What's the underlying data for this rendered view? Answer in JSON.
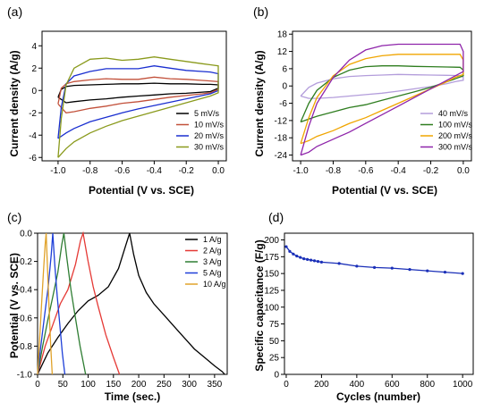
{
  "chart_data": [
    {
      "panel": "(a)",
      "type": "line",
      "xlabel": "Potential (V vs. SCE)",
      "ylabel": "Current density (A/g)",
      "xlim": [
        -1.1,
        0.05
      ],
      "ylim": [
        -6.3,
        5.3
      ],
      "xticks": [
        -1.0,
        -0.8,
        -0.6,
        -0.4,
        -0.2,
        0.0
      ],
      "yticks": [
        -6,
        -4,
        -2,
        0,
        2,
        4
      ],
      "xtick_labels": [
        "-1.0",
        "-0.8",
        "-0.6",
        "-0.4",
        "-0.2",
        "0.0"
      ],
      "ytick_labels": [
        "-6",
        "-4",
        "-2",
        "0",
        "2",
        "4"
      ],
      "legend_position": "bottom-right",
      "series": [
        {
          "name": "5 mV/s",
          "color": "#000000",
          "upper": {
            "x": [
              -1.0,
              -0.98,
              -0.95,
              -0.9,
              -0.8,
              -0.7,
              -0.6,
              -0.5,
              -0.4,
              -0.3,
              -0.2,
              -0.1,
              -0.05,
              0.0
            ],
            "y": [
              -0.6,
              0.1,
              0.35,
              0.45,
              0.5,
              0.55,
              0.6,
              0.6,
              0.65,
              0.6,
              0.6,
              0.55,
              0.55,
              0.5
            ]
          },
          "lower": {
            "x": [
              0.0,
              -0.05,
              -0.1,
              -0.2,
              -0.3,
              -0.4,
              -0.5,
              -0.6,
              -0.7,
              -0.8,
              -0.9,
              -0.95,
              -1.0
            ],
            "y": [
              0.2,
              -0.1,
              -0.15,
              -0.25,
              -0.3,
              -0.4,
              -0.5,
              -0.6,
              -0.75,
              -0.85,
              -1.0,
              -1.1,
              -0.6
            ]
          }
        },
        {
          "name": "10 mV/s",
          "color": "#c2503a",
          "upper": {
            "x": [
              -1.0,
              -0.98,
              -0.95,
              -0.9,
              -0.8,
              -0.7,
              -0.6,
              -0.5,
              -0.4,
              -0.3,
              -0.2,
              -0.1,
              -0.05,
              0.0
            ],
            "y": [
              -1.2,
              0.2,
              0.6,
              0.8,
              0.95,
              1.05,
              1.0,
              1.0,
              1.2,
              1.05,
              1.0,
              0.9,
              0.85,
              0.8
            ]
          },
          "lower": {
            "x": [
              0.0,
              -0.05,
              -0.1,
              -0.2,
              -0.3,
              -0.4,
              -0.5,
              -0.6,
              -0.7,
              -0.8,
              -0.9,
              -0.95,
              -1.0
            ],
            "y": [
              0.1,
              -0.2,
              -0.3,
              -0.45,
              -0.6,
              -0.8,
              -1.0,
              -1.15,
              -1.4,
              -1.6,
              -1.9,
              -2.0,
              -1.2
            ]
          }
        },
        {
          "name": "20 mV/s",
          "color": "#1a2fd0",
          "upper": {
            "x": [
              -1.0,
              -0.98,
              -0.95,
              -0.9,
              -0.8,
              -0.7,
              -0.6,
              -0.5,
              -0.4,
              -0.3,
              -0.2,
              -0.1,
              -0.05,
              0.0
            ],
            "y": [
              -4.3,
              -1.5,
              0.6,
              1.3,
              1.7,
              1.95,
              1.95,
              1.95,
              2.2,
              2.0,
              1.8,
              1.7,
              1.65,
              1.5
            ]
          },
          "lower": {
            "x": [
              0.0,
              -0.05,
              -0.1,
              -0.2,
              -0.3,
              -0.4,
              -0.5,
              -0.6,
              -0.7,
              -0.8,
              -0.9,
              -0.95,
              -1.0
            ],
            "y": [
              0.0,
              -0.3,
              -0.45,
              -0.75,
              -1.05,
              -1.35,
              -1.65,
              -2.0,
              -2.4,
              -2.8,
              -3.4,
              -3.8,
              -4.3
            ]
          }
        },
        {
          "name": "30 mV/s",
          "color": "#8a9a1c",
          "upper": {
            "x": [
              -1.0,
              -0.98,
              -0.95,
              -0.9,
              -0.8,
              -0.7,
              -0.6,
              -0.5,
              -0.4,
              -0.3,
              -0.2,
              -0.1,
              -0.05,
              0.0
            ],
            "y": [
              -6.0,
              -2.5,
              0.5,
              2.0,
              2.8,
              2.9,
              2.7,
              2.8,
              3.0,
              2.8,
              2.6,
              2.4,
              2.3,
              2.2
            ]
          },
          "lower": {
            "x": [
              0.0,
              -0.05,
              -0.1,
              -0.2,
              -0.3,
              -0.4,
              -0.5,
              -0.6,
              -0.7,
              -0.8,
              -0.9,
              -0.95,
              -1.0
            ],
            "y": [
              -0.2,
              -0.5,
              -0.7,
              -1.1,
              -1.5,
              -1.9,
              -2.3,
              -2.7,
              -3.2,
              -3.8,
              -4.6,
              -5.2,
              -6.0
            ]
          }
        }
      ]
    },
    {
      "panel": "(b)",
      "type": "line",
      "xlabel": "Potential (V vs. SCE)",
      "ylabel": "Current density (A/g)",
      "xlim": [
        -1.05,
        0.05
      ],
      "ylim": [
        -26,
        19
      ],
      "xticks": [
        -1.0,
        -0.8,
        -0.6,
        -0.4,
        -0.2,
        0.0
      ],
      "yticks": [
        -24,
        -18,
        -12,
        -6,
        0,
        6,
        12,
        18
      ],
      "xtick_labels": [
        "-1.0",
        "-0.8",
        "-0.6",
        "-0.4",
        "-0.2",
        "0.0"
      ],
      "ytick_labels": [
        "-24",
        "-18",
        "-12",
        "-6",
        "0",
        "6",
        "12",
        "18"
      ],
      "legend_position": "bottom-right",
      "series": [
        {
          "name": "40 mV/s",
          "color": "#b39ddb",
          "upper": {
            "x": [
              -1.0,
              -0.95,
              -0.9,
              -0.8,
              -0.7,
              -0.6,
              -0.5,
              -0.4,
              -0.3,
              -0.2,
              -0.1,
              -0.02,
              0.0
            ],
            "y": [
              -3.5,
              -0.5,
              1.0,
              2.5,
              3.3,
              3.6,
              3.8,
              4.0,
              3.9,
              3.8,
              3.7,
              3.6,
              3.0
            ]
          },
          "lower": {
            "x": [
              0.0,
              -0.05,
              -0.1,
              -0.2,
              -0.3,
              -0.4,
              -0.5,
              -0.6,
              -0.7,
              -0.8,
              -0.9,
              -0.95,
              -1.0
            ],
            "y": [
              2.0,
              1.5,
              0.8,
              -0.2,
              -1.0,
              -1.8,
              -2.5,
              -3.0,
              -3.5,
              -4.0,
              -4.3,
              -4.3,
              -3.5
            ]
          }
        },
        {
          "name": "100 mV/s",
          "color": "#2e7d1f",
          "upper": {
            "x": [
              -1.0,
              -0.95,
              -0.9,
              -0.8,
              -0.7,
              -0.6,
              -0.5,
              -0.4,
              -0.3,
              -0.2,
              -0.1,
              -0.02,
              0.0
            ],
            "y": [
              -12.5,
              -6.0,
              -1.5,
              3.0,
              5.5,
              6.7,
              7.0,
              7.0,
              6.8,
              6.7,
              6.6,
              6.5,
              5.5
            ]
          },
          "lower": {
            "x": [
              0.0,
              -0.05,
              -0.1,
              -0.2,
              -0.3,
              -0.4,
              -0.5,
              -0.6,
              -0.7,
              -0.8,
              -0.9,
              -0.95,
              -1.0
            ],
            "y": [
              3.5,
              2.5,
              1.5,
              -0.5,
              -2.0,
              -3.5,
              -5.0,
              -6.5,
              -7.5,
              -9.0,
              -10.5,
              -11.5,
              -12.5
            ]
          }
        },
        {
          "name": "200 mV/s",
          "color": "#f0a500",
          "upper": {
            "x": [
              -1.0,
              -0.95,
              -0.9,
              -0.8,
              -0.7,
              -0.6,
              -0.5,
              -0.4,
              -0.3,
              -0.2,
              -0.1,
              -0.02,
              0.0
            ],
            "y": [
              -20.0,
              -11.0,
              -4.0,
              3.5,
              7.5,
              9.5,
              10.5,
              11.0,
              11.0,
              11.0,
              11.0,
              11.0,
              9.0
            ]
          },
          "lower": {
            "x": [
              0.0,
              -0.05,
              -0.1,
              -0.2,
              -0.3,
              -0.4,
              -0.5,
              -0.6,
              -0.7,
              -0.8,
              -0.9,
              -0.95,
              -1.0
            ],
            "y": [
              4.0,
              3.0,
              1.5,
              -1.0,
              -3.5,
              -6.0,
              -8.5,
              -11.0,
              -13.0,
              -15.5,
              -17.5,
              -19.0,
              -20.0
            ]
          }
        },
        {
          "name": "300 mV/s",
          "color": "#8e24aa",
          "upper": {
            "x": [
              -1.0,
              -0.95,
              -0.9,
              -0.8,
              -0.7,
              -0.6,
              -0.5,
              -0.4,
              -0.3,
              -0.2,
              -0.1,
              -0.02,
              0.0
            ],
            "y": [
              -24.0,
              -14.0,
              -6.0,
              3.0,
              9.0,
              12.5,
              14.0,
              14.5,
              14.5,
              14.5,
              14.5,
              14.5,
              12.0
            ]
          },
          "lower": {
            "x": [
              0.0,
              -0.05,
              -0.1,
              -0.2,
              -0.3,
              -0.4,
              -0.5,
              -0.6,
              -0.7,
              -0.8,
              -0.9,
              -0.95,
              -1.0
            ],
            "y": [
              5.0,
              3.5,
              2.0,
              -1.0,
              -4.0,
              -7.0,
              -10.0,
              -13.0,
              -16.0,
              -18.5,
              -21.0,
              -23.0,
              -24.0
            ]
          }
        }
      ]
    },
    {
      "panel": "(c)",
      "type": "line",
      "xlabel": "Time (sec.)",
      "ylabel": "Potential (V vs. SCE)",
      "xlim": [
        0,
        375
      ],
      "ylim": [
        -1.0,
        0.0
      ],
      "xticks": [
        0,
        50,
        100,
        150,
        200,
        250,
        300,
        350
      ],
      "yticks": [
        -1.0,
        -0.8,
        -0.6,
        -0.4,
        -0.2,
        0.0
      ],
      "xtick_labels": [
        "0",
        "50",
        "100",
        "150",
        "200",
        "250",
        "300",
        "350"
      ],
      "ytick_labels": [
        "-1.0",
        "-0.8",
        "-0.6",
        "-0.4",
        "-0.2",
        "0.0"
      ],
      "legend_position": "top-right",
      "series": [
        {
          "name": "1 A/g",
          "color": "#000000",
          "x": [
            0,
            20,
            40,
            60,
            80,
            100,
            120,
            140,
            160,
            175,
            182,
            190,
            200,
            215,
            230,
            250,
            270,
            290,
            310,
            330,
            350,
            365,
            370
          ],
          "y": [
            -1.0,
            -0.85,
            -0.74,
            -0.64,
            -0.55,
            -0.48,
            -0.44,
            -0.38,
            -0.25,
            -0.08,
            0.0,
            -0.15,
            -0.3,
            -0.42,
            -0.5,
            -0.58,
            -0.66,
            -0.74,
            -0.82,
            -0.88,
            -0.94,
            -0.98,
            -1.0
          ]
        },
        {
          "name": "2 A/g",
          "color": "#e53935",
          "x": [
            0,
            15,
            30,
            45,
            60,
            75,
            85,
            90,
            100,
            110,
            120,
            135,
            150,
            162
          ],
          "y": [
            -1.0,
            -0.8,
            -0.65,
            -0.5,
            -0.4,
            -0.22,
            -0.05,
            0.0,
            -0.2,
            -0.38,
            -0.52,
            -0.72,
            -0.88,
            -1.0
          ]
        },
        {
          "name": "3 A/g",
          "color": "#2e7d32",
          "x": [
            0,
            10,
            20,
            30,
            40,
            48,
            52,
            58,
            66,
            74,
            84,
            95
          ],
          "y": [
            -1.0,
            -0.8,
            -0.62,
            -0.45,
            -0.28,
            -0.08,
            0.0,
            -0.18,
            -0.4,
            -0.58,
            -0.8,
            -1.0
          ]
        },
        {
          "name": "5 A/g",
          "color": "#1e3fd8",
          "x": [
            0,
            7,
            14,
            21,
            27,
            30,
            34,
            39,
            44,
            49,
            54
          ],
          "y": [
            -1.0,
            -0.78,
            -0.58,
            -0.38,
            -0.15,
            0.0,
            -0.22,
            -0.45,
            -0.65,
            -0.85,
            -1.0
          ]
        },
        {
          "name": "10 A/g",
          "color": "#e0a22a",
          "x": [
            0,
            4,
            8,
            12,
            15,
            17,
            20,
            23,
            26,
            29
          ],
          "y": [
            -1.0,
            -0.75,
            -0.5,
            -0.25,
            -0.08,
            0.0,
            -0.28,
            -0.55,
            -0.8,
            -1.0
          ]
        }
      ]
    },
    {
      "panel": "(d)",
      "type": "line",
      "xlabel": "Cycles (number)",
      "ylabel": "Specific capacitance (F/g)",
      "xlim": [
        -10,
        1060
      ],
      "ylim": [
        0,
        210
      ],
      "xticks": [
        0,
        200,
        400,
        600,
        800,
        1000
      ],
      "yticks": [
        0,
        25,
        50,
        75,
        100,
        125,
        150,
        175,
        200
      ],
      "xtick_labels": [
        "0",
        "200",
        "400",
        "600",
        "800",
        "1000"
      ],
      "ytick_labels": [
        "0",
        "25",
        "50",
        "75",
        "100",
        "125",
        "150",
        "175",
        "200"
      ],
      "series": [
        {
          "color": "#1a2fb8",
          "x": [
            0,
            20,
            40,
            60,
            80,
            100,
            120,
            140,
            160,
            180,
            200,
            300,
            400,
            500,
            600,
            700,
            800,
            900,
            1000
          ],
          "y": [
            190,
            183,
            179,
            176,
            174,
            172,
            171,
            170,
            169,
            168,
            167,
            165,
            161,
            159,
            158,
            156,
            154,
            152,
            150
          ]
        }
      ]
    }
  ]
}
